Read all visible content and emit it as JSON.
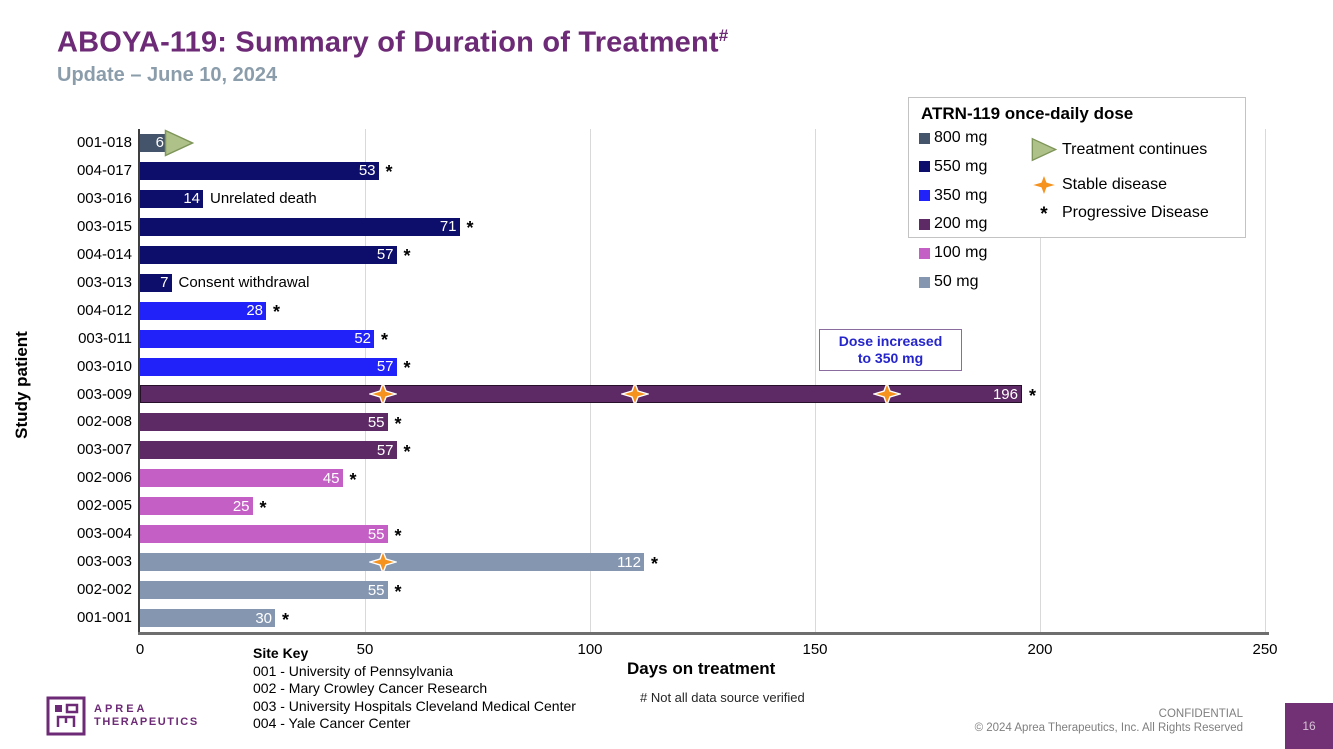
{
  "header": {
    "title": "ABOYA-119: Summary of Duration of Treatment",
    "title_superscript": "#",
    "subtitle": "Update – June 10, 2024"
  },
  "chart_data": {
    "type": "bar",
    "orientation": "horizontal",
    "xlabel": "Days on treatment",
    "ylabel": "Study patient",
    "xlim": [
      0,
      250
    ],
    "xticks": [
      0,
      50,
      100,
      150,
      200,
      250
    ],
    "grid": "vertical-light-gray",
    "progressive_marker": "*",
    "dose_colors": {
      "800": "#44546a",
      "550": "#0d0d6b",
      "350": "#2121fa",
      "200": "#5e2a66",
      "100": "#c45fc6",
      "50": "#8496b0"
    },
    "patients": [
      {
        "id": "001-018",
        "days": 6,
        "dose_mg": 800,
        "treatment_continues": true
      },
      {
        "id": "004-017",
        "days": 53,
        "dose_mg": 550,
        "progressive": true
      },
      {
        "id": "003-016",
        "days": 14,
        "dose_mg": 550,
        "note": "Unrelated death"
      },
      {
        "id": "003-015",
        "days": 71,
        "dose_mg": 550,
        "progressive": true
      },
      {
        "id": "004-014",
        "days": 57,
        "dose_mg": 550,
        "progressive": true
      },
      {
        "id": "003-013",
        "days": 7,
        "dose_mg": 550,
        "note": "Consent withdrawal"
      },
      {
        "id": "004-012",
        "days": 28,
        "dose_mg": 350,
        "progressive": true
      },
      {
        "id": "003-011",
        "days": 52,
        "dose_mg": 350,
        "progressive": true
      },
      {
        "id": "003-010",
        "days": 57,
        "dose_mg": 350,
        "progressive": true
      },
      {
        "id": "003-009",
        "days": 196,
        "dose_mg": 200,
        "progressive": true,
        "stable_disease_days": [
          54,
          110,
          166
        ],
        "outlined": true
      },
      {
        "id": "002-008",
        "days": 55,
        "dose_mg": 200,
        "progressive": true
      },
      {
        "id": "003-007",
        "days": 57,
        "dose_mg": 200,
        "progressive": true
      },
      {
        "id": "002-006",
        "days": 45,
        "dose_mg": 100,
        "progressive": true
      },
      {
        "id": "002-005",
        "days": 25,
        "dose_mg": 100,
        "progressive": true
      },
      {
        "id": "003-004",
        "days": 55,
        "dose_mg": 100,
        "progressive": true
      },
      {
        "id": "003-003",
        "days": 112,
        "dose_mg": 50,
        "progressive": true,
        "stable_disease_days": [
          54
        ]
      },
      {
        "id": "002-002",
        "days": 55,
        "dose_mg": 50,
        "progressive": true
      },
      {
        "id": "001-001",
        "days": 30,
        "dose_mg": 50,
        "progressive": true
      }
    ]
  },
  "annotation": {
    "line1": "Dose increased",
    "line2": "to 350 mg",
    "text_color": "#2525cb"
  },
  "legend": {
    "title": "ATRN-119 once-daily dose",
    "doses": [
      {
        "label": "800 mg",
        "color": "#44546a"
      },
      {
        "label": "550 mg",
        "color": "#0d0d6b"
      },
      {
        "label": "350 mg",
        "color": "#2121fa"
      },
      {
        "label": "200 mg",
        "color": "#5e2a66"
      },
      {
        "label": "100 mg",
        "color": "#c45fc6"
      },
      {
        "label": "50 mg",
        "color": "#8496b0"
      }
    ],
    "symbols": [
      {
        "icon": "treatment-continues-arrow",
        "label": "Treatment continues",
        "color": "#aec189"
      },
      {
        "icon": "stable-disease-star",
        "label": "Stable disease",
        "color": "#f6921e"
      },
      {
        "icon": "progressive-disease-asterisk",
        "label": "Progressive Disease",
        "glyph": "*"
      }
    ]
  },
  "site_key": {
    "title": "Site Key",
    "entries": [
      {
        "code": "001",
        "name": "University of Pennsylvania"
      },
      {
        "code": "002",
        "name": "Mary Crowley Cancer Research"
      },
      {
        "code": "003",
        "name": "University Hospitals Cleveland Medical Center"
      },
      {
        "code": "004",
        "name": "Yale Cancer Center"
      }
    ]
  },
  "footnote": "# Not all data source verified",
  "footer": {
    "logo_line1": "APREA",
    "logo_line2": "THERAPEUTICS",
    "confidential": "CONFIDENTIAL",
    "copyright": "© 2024 Aprea Therapeutics, Inc. All Rights Reserved",
    "page_number": "16"
  },
  "colors": {
    "title": "#6d2a76",
    "subtitle": "#8b9dab",
    "star": "#f6921e",
    "arrow_fill": "#aec189",
    "arrow_stroke": "#7e9559",
    "gridline": "#d9d9d9",
    "page_box": "#713174"
  }
}
